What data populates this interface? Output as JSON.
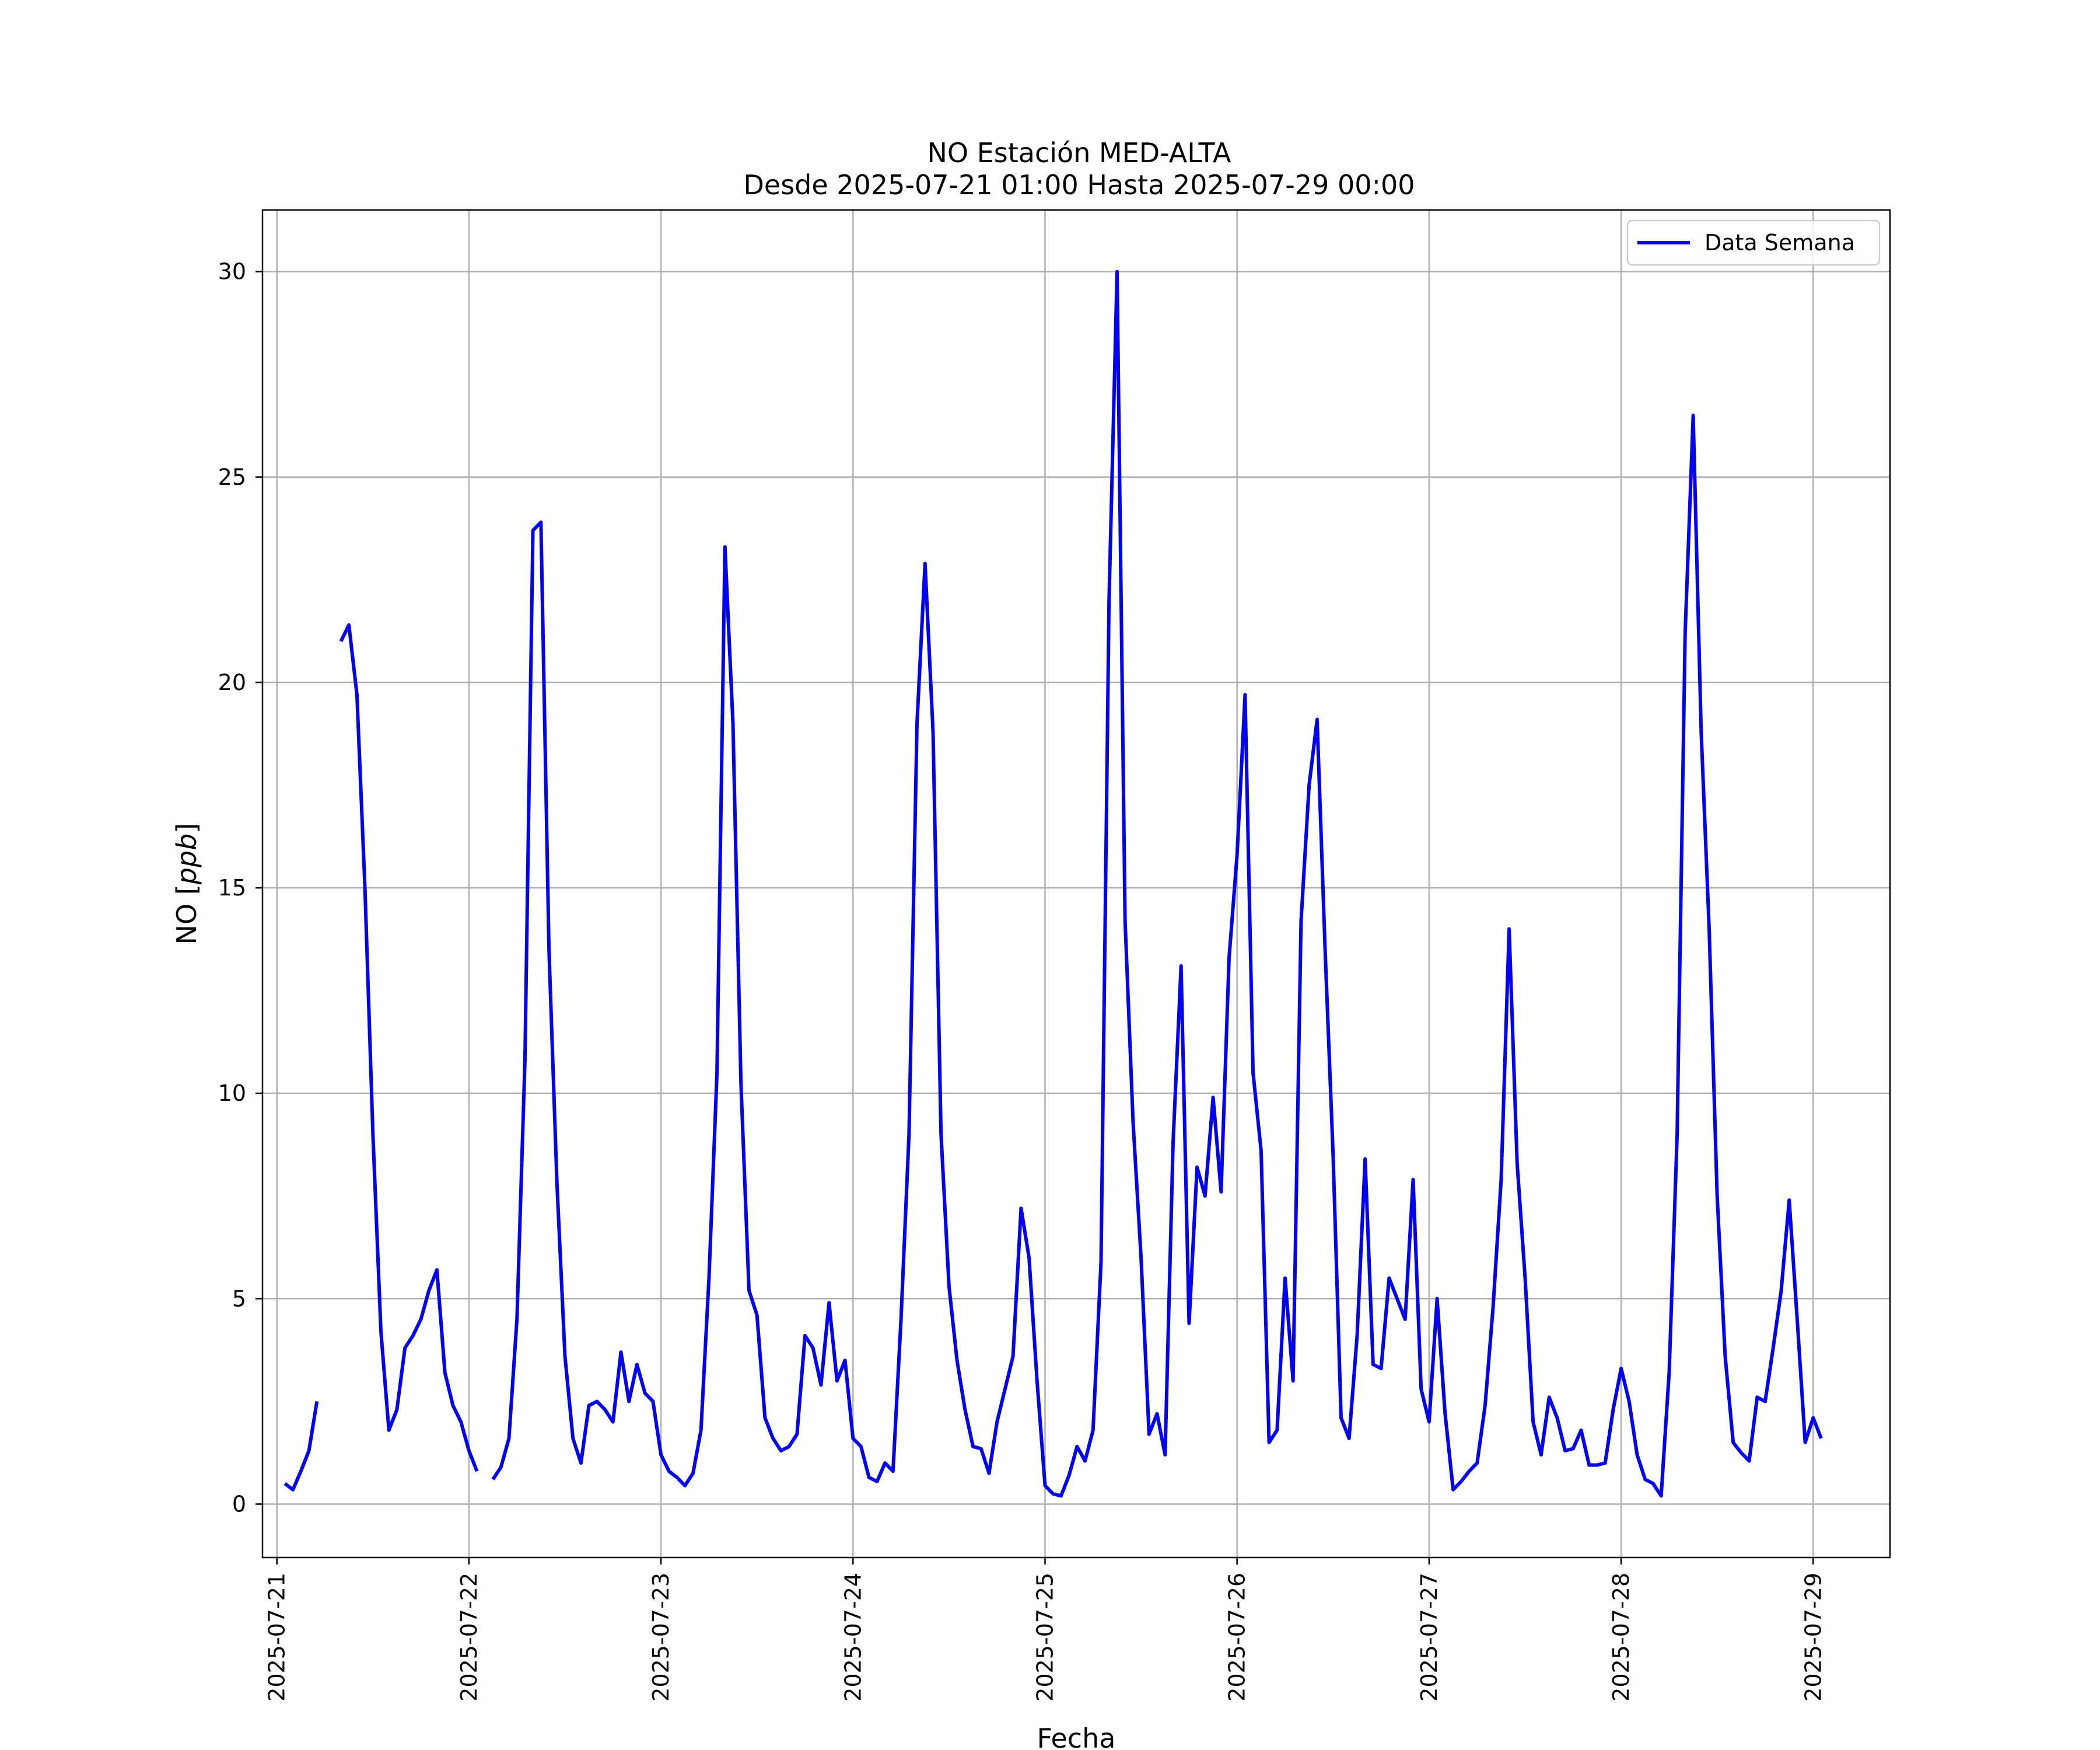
{
  "chart_data": {
    "type": "line",
    "title_line1": "NO Estación MED-ALTA",
    "title_line2": "Desde 2025-07-21 01:00 Hasta 2025-07-29 00:00",
    "xlabel": "Fecha",
    "ylabel": "NO [ppb]",
    "ylabel_prefix": "NO [",
    "ylabel_unit": "ppb",
    "ylabel_suffix": "]",
    "xlim": [
      "2025-07-20 22:12",
      "2025-07-29 09:36"
    ],
    "ylim": [
      -1.3,
      31.5
    ],
    "x_ticks": [
      "2025-07-21",
      "2025-07-22",
      "2025-07-23",
      "2025-07-24",
      "2025-07-25",
      "2025-07-26",
      "2025-07-27",
      "2025-07-28",
      "2025-07-29"
    ],
    "y_ticks": [
      0,
      5,
      10,
      15,
      20,
      25,
      30
    ],
    "y_tick_labels": [
      "0",
      "5",
      "10",
      "15",
      "20",
      "25",
      "30"
    ],
    "grid": true,
    "legend_position": "top-right",
    "series": [
      {
        "name": "Data Semana",
        "color": "#0000ff",
        "x_start": "2025-07-21 01:00",
        "x_step_hours": 1,
        "values": [
          0.5,
          0.35,
          0.8,
          1.3,
          2.5,
          null,
          null,
          21.0,
          21.4,
          19.7,
          15.0,
          9.0,
          4.2,
          1.8,
          2.3,
          3.8,
          4.1,
          4.5,
          5.2,
          5.7,
          3.2,
          2.4,
          2.0,
          1.3,
          0.8,
          null,
          0.6,
          0.9,
          1.6,
          4.5,
          10.8,
          23.7,
          23.9,
          13.5,
          7.8,
          3.6,
          1.6,
          1.0,
          2.4,
          2.5,
          2.3,
          2.0,
          3.7,
          2.5,
          3.4,
          2.7,
          2.5,
          1.2,
          0.8,
          0.65,
          0.45,
          0.75,
          1.8,
          5.5,
          10.5,
          23.3,
          19.0,
          10.2,
          5.2,
          4.6,
          2.1,
          1.6,
          1.3,
          1.4,
          1.7,
          4.1,
          3.8,
          2.9,
          4.9,
          3.0,
          3.5,
          1.6,
          1.4,
          0.65,
          0.55,
          1.0,
          0.8,
          4.5,
          9.0,
          19.0,
          22.9,
          18.8,
          9.0,
          5.3,
          3.5,
          2.3,
          1.4,
          1.35,
          0.75,
          2.0,
          2.8,
          3.6,
          7.2,
          6.0,
          3.0,
          0.45,
          0.25,
          0.2,
          0.7,
          1.4,
          1.05,
          1.8,
          5.9,
          22.0,
          30.0,
          14.2,
          9.3,
          6.0,
          1.7,
          2.2,
          1.2,
          8.8,
          13.1,
          4.4,
          8.2,
          7.5,
          9.9,
          7.6,
          13.3,
          15.8,
          19.7,
          10.5,
          8.6,
          1.5,
          1.8,
          5.5,
          3.0,
          14.2,
          17.5,
          19.1,
          13.5,
          8.5,
          2.1,
          1.6,
          4.1,
          8.4,
          3.4,
          3.3,
          5.5,
          5.0,
          4.5,
          7.9,
          2.8,
          2.0,
          5.0,
          2.2,
          0.35,
          0.55,
          0.8,
          1.0,
          2.4,
          4.8,
          7.9,
          14.0,
          8.3,
          5.5,
          2.0,
          1.2,
          2.6,
          2.1,
          1.3,
          1.35,
          1.8,
          0.95,
          0.95,
          1.0,
          2.3,
          3.3,
          2.5,
          1.2,
          0.6,
          0.5,
          0.2,
          3.2,
          9.0,
          21.2,
          26.5,
          18.8,
          14.0,
          7.5,
          3.6,
          1.5,
          1.25,
          1.05,
          2.6,
          2.5,
          3.8,
          5.2,
          7.4,
          4.5,
          1.5,
          2.1,
          1.6
        ]
      }
    ]
  }
}
